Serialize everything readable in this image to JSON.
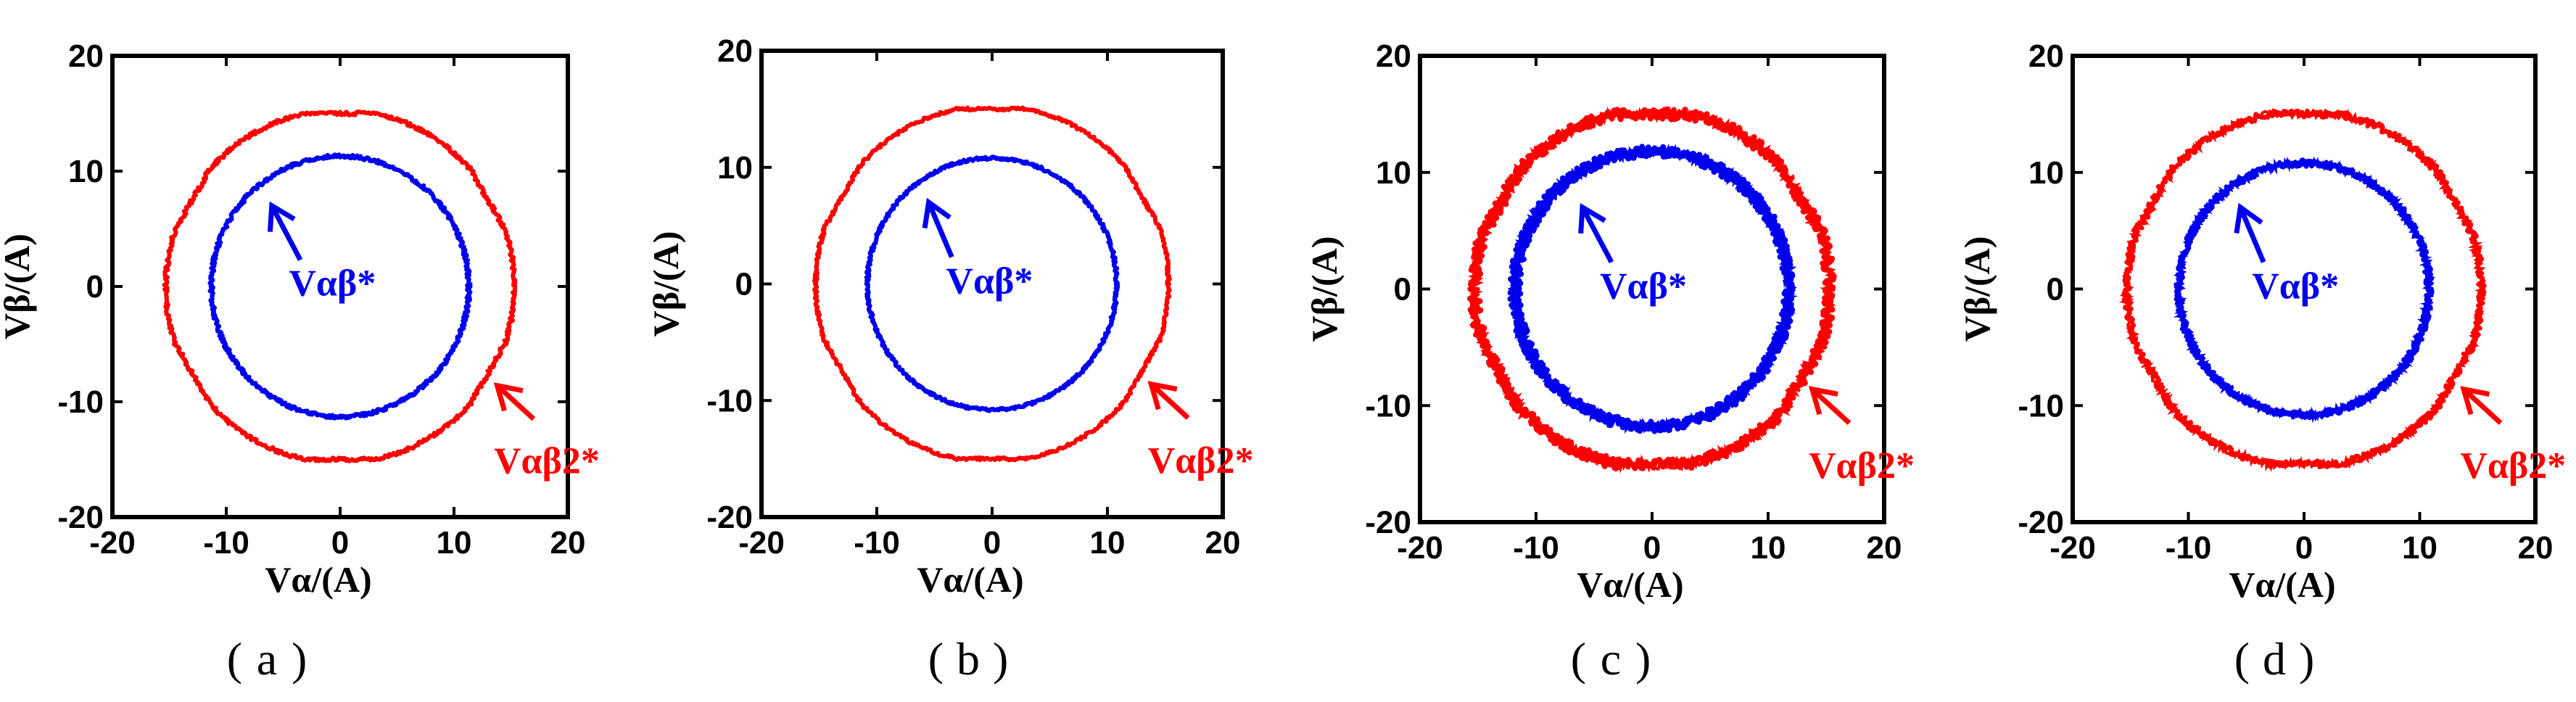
{
  "figure": {
    "panels": [
      {
        "caption_open": "(",
        "caption_letter": "a",
        "caption_close": ")"
      },
      {
        "caption_open": "(",
        "caption_letter": "b",
        "caption_close": ")"
      },
      {
        "caption_open": "(",
        "caption_letter": "c",
        "caption_close": ")"
      },
      {
        "caption_open": "(",
        "caption_letter": "d",
        "caption_close": ")"
      }
    ]
  },
  "chart_data": [
    {
      "type": "line",
      "panel": "(a)",
      "xlabel": "Vα/(A)",
      "ylabel": "Vβ/(A)",
      "xlim": [
        -20,
        20
      ],
      "ylim": [
        -20,
        20
      ],
      "xticks": [
        -20,
        -10,
        0,
        10,
        20
      ],
      "yticks": [
        -20,
        -10,
        0,
        10,
        20
      ],
      "noise": 0.15,
      "series": [
        {
          "name": "Vαβ2*",
          "color": "#ff0000",
          "shape": "rounded-hexagon",
          "radius": 15.3,
          "flat": 15.0
        },
        {
          "name": "Vαβ*",
          "color": "#0000ee",
          "shape": "circle",
          "radius": 11.3
        }
      ],
      "annotations": [
        {
          "text": "Vαβ*",
          "color": "#0000ee",
          "at": [
            -4.5,
            -0.8
          ],
          "arrow_from": [
            -3.5,
            2.3
          ],
          "arrow_to": [
            -6.0,
            7.0
          ]
        },
        {
          "text": "Vαβ2*",
          "color": "#ff0000",
          "at": [
            13.5,
            -16.2
          ],
          "arrow_from": [
            17.0,
            -11.5
          ],
          "arrow_to": [
            13.8,
            -8.6
          ]
        }
      ]
    },
    {
      "type": "line",
      "panel": "(b)",
      "xlabel": "Vα/(A)",
      "ylabel": "Vβ/(A)",
      "xlim": [
        -20,
        20
      ],
      "ylim": [
        -20,
        20
      ],
      "xticks": [
        -20,
        -10,
        0,
        10,
        20
      ],
      "yticks": [
        -20,
        -10,
        0,
        10,
        20
      ],
      "noise": 0.12,
      "series": [
        {
          "name": "Vαβ2*",
          "color": "#ff0000",
          "shape": "rounded-hexagon",
          "radius": 15.3,
          "flat": 15.0
        },
        {
          "name": "Vαβ*",
          "color": "#0000ee",
          "shape": "circle",
          "radius": 10.8
        }
      ],
      "annotations": [
        {
          "text": "Vαβ*",
          "color": "#0000ee",
          "at": [
            -4.0,
            -0.8
          ],
          "arrow_from": [
            -3.5,
            2.3
          ],
          "arrow_to": [
            -5.5,
            7.0
          ]
        },
        {
          "text": "Vαβ2*",
          "color": "#ff0000",
          "at": [
            13.5,
            -16.2
          ],
          "arrow_from": [
            17.0,
            -11.5
          ],
          "arrow_to": [
            13.8,
            -8.6
          ]
        }
      ]
    },
    {
      "type": "line",
      "panel": "(c)",
      "xlabel": "Vα/(A)",
      "ylabel": "Vβ/(A)",
      "xlim": [
        -20,
        20
      ],
      "ylim": [
        -20,
        20
      ],
      "xticks": [
        -20,
        -10,
        0,
        10,
        20
      ],
      "yticks": [
        -20,
        -10,
        0,
        10,
        20
      ],
      "noise": 0.45,
      "series": [
        {
          "name": "Vαβ2*",
          "color": "#ff0000",
          "shape": "rounded-hexagon",
          "radius": 15.3,
          "flat": 15.0
        },
        {
          "name": "Vαβ*",
          "color": "#0000ee",
          "shape": "circle",
          "radius": 11.8
        }
      ],
      "annotations": [
        {
          "text": "Vαβ*",
          "color": "#0000ee",
          "at": [
            -4.5,
            -0.8
          ],
          "arrow_from": [
            -3.5,
            2.3
          ],
          "arrow_to": [
            -6.0,
            7.0
          ]
        },
        {
          "text": "Vαβ2*",
          "color": "#ff0000",
          "at": [
            13.5,
            -16.2
          ],
          "arrow_from": [
            17.0,
            -11.5
          ],
          "arrow_to": [
            13.8,
            -8.6
          ]
        }
      ]
    },
    {
      "type": "line",
      "panel": "(d)",
      "xlabel": "Vα/(A)",
      "ylabel": "Vβ/(A)",
      "xlim": [
        -20,
        20
      ],
      "ylim": [
        -20,
        20
      ],
      "xticks": [
        -20,
        -10,
        0,
        10,
        20
      ],
      "yticks": [
        -20,
        -10,
        0,
        10,
        20
      ],
      "noise": 0.3,
      "series": [
        {
          "name": "Vαβ2*",
          "color": "#ff0000",
          "shape": "rounded-hexagon",
          "radius": 15.3,
          "flat": 15.0
        },
        {
          "name": "Vαβ*",
          "color": "#0000ee",
          "shape": "circle",
          "radius": 10.8
        }
      ],
      "annotations": [
        {
          "text": "Vαβ*",
          "color": "#0000ee",
          "at": [
            -4.5,
            -0.8
          ],
          "arrow_from": [
            -3.5,
            2.3
          ],
          "arrow_to": [
            -5.5,
            7.0
          ]
        },
        {
          "text": "Vαβ2*",
          "color": "#ff0000",
          "at": [
            13.5,
            -16.2
          ],
          "arrow_from": [
            17.0,
            -11.5
          ],
          "arrow_to": [
            13.8,
            -8.6
          ]
        }
      ]
    }
  ]
}
